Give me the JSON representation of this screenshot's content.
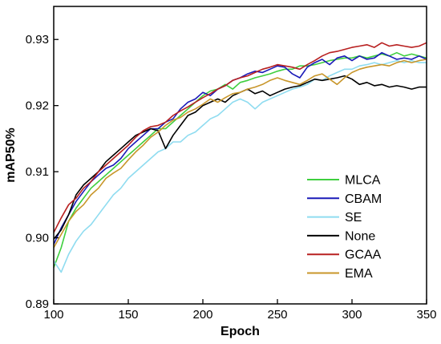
{
  "chart_data": {
    "type": "line",
    "xlabel": "Epoch",
    "ylabel": "mAP50%",
    "xlim": [
      100,
      350
    ],
    "ylim": [
      0.89,
      0.935
    ],
    "xticks": [
      100,
      150,
      200,
      250,
      300,
      350
    ],
    "yticks": [
      0.89,
      0.9,
      0.91,
      0.92,
      0.93
    ],
    "ytick_labels": [
      "0.89",
      "0.90",
      "0.91",
      "0.92",
      "0.93"
    ],
    "legend_position": "bottom-right",
    "grid": false,
    "series": [
      {
        "name": "MLCA",
        "color": "#3fcf3f",
        "points": [
          [
            100,
            0.8955
          ],
          [
            105,
            0.8985
          ],
          [
            110,
            0.9025
          ],
          [
            115,
            0.9045
          ],
          [
            120,
            0.906
          ],
          [
            125,
            0.9075
          ],
          [
            130,
            0.9085
          ],
          [
            135,
            0.9095
          ],
          [
            140,
            0.9105
          ],
          [
            145,
            0.9115
          ],
          [
            150,
            0.9125
          ],
          [
            155,
            0.9135
          ],
          [
            160,
            0.9145
          ],
          [
            165,
            0.9155
          ],
          [
            170,
            0.9165
          ],
          [
            175,
            0.9165
          ],
          [
            180,
            0.9175
          ],
          [
            185,
            0.9185
          ],
          [
            190,
            0.9195
          ],
          [
            195,
            0.9205
          ],
          [
            200,
            0.9215
          ],
          [
            205,
            0.9222
          ],
          [
            210,
            0.9225
          ],
          [
            215,
            0.9232
          ],
          [
            220,
            0.9225
          ],
          [
            225,
            0.9235
          ],
          [
            230,
            0.9238
          ],
          [
            235,
            0.9242
          ],
          [
            240,
            0.9245
          ],
          [
            245,
            0.9248
          ],
          [
            250,
            0.9252
          ],
          [
            255,
            0.9255
          ],
          [
            260,
            0.9255
          ],
          [
            265,
            0.926
          ],
          [
            270,
            0.926
          ],
          [
            275,
            0.9262
          ],
          [
            280,
            0.9265
          ],
          [
            285,
            0.9268
          ],
          [
            290,
            0.927
          ],
          [
            295,
            0.9272
          ],
          [
            300,
            0.9272
          ],
          [
            305,
            0.9275
          ],
          [
            310,
            0.9272
          ],
          [
            315,
            0.9275
          ],
          [
            320,
            0.9278
          ],
          [
            325,
            0.9275
          ],
          [
            330,
            0.928
          ],
          [
            335,
            0.9275
          ],
          [
            340,
            0.9278
          ],
          [
            345,
            0.9275
          ],
          [
            350,
            0.9272
          ]
        ]
      },
      {
        "name": "CBAM",
        "color": "#1a1ab8",
        "points": [
          [
            100,
            0.899
          ],
          [
            105,
            0.9015
          ],
          [
            110,
            0.9035
          ],
          [
            115,
            0.9055
          ],
          [
            120,
            0.907
          ],
          [
            125,
            0.9085
          ],
          [
            130,
            0.9095
          ],
          [
            135,
            0.9105
          ],
          [
            140,
            0.911
          ],
          [
            145,
            0.912
          ],
          [
            150,
            0.9135
          ],
          [
            155,
            0.9145
          ],
          [
            160,
            0.9155
          ],
          [
            165,
            0.9165
          ],
          [
            170,
            0.9165
          ],
          [
            175,
            0.9175
          ],
          [
            180,
            0.918
          ],
          [
            185,
            0.9195
          ],
          [
            190,
            0.9205
          ],
          [
            195,
            0.921
          ],
          [
            200,
            0.922
          ],
          [
            205,
            0.9215
          ],
          [
            210,
            0.9225
          ],
          [
            215,
            0.923
          ],
          [
            220,
            0.9238
          ],
          [
            225,
            0.9242
          ],
          [
            230,
            0.9248
          ],
          [
            235,
            0.9252
          ],
          [
            240,
            0.925
          ],
          [
            245,
            0.9255
          ],
          [
            250,
            0.926
          ],
          [
            255,
            0.9258
          ],
          [
            260,
            0.9248
          ],
          [
            265,
            0.9242
          ],
          [
            270,
            0.9258
          ],
          [
            275,
            0.9265
          ],
          [
            280,
            0.927
          ],
          [
            285,
            0.9262
          ],
          [
            290,
            0.9272
          ],
          [
            295,
            0.9275
          ],
          [
            300,
            0.9268
          ],
          [
            305,
            0.9275
          ],
          [
            310,
            0.927
          ],
          [
            315,
            0.9272
          ],
          [
            320,
            0.928
          ],
          [
            325,
            0.9275
          ],
          [
            330,
            0.927
          ],
          [
            335,
            0.9272
          ],
          [
            340,
            0.927
          ],
          [
            345,
            0.9275
          ],
          [
            350,
            0.927
          ]
        ]
      },
      {
        "name": "SE",
        "color": "#8fdcf0",
        "points": [
          [
            100,
            0.8965
          ],
          [
            105,
            0.8948
          ],
          [
            110,
            0.8975
          ],
          [
            115,
            0.8995
          ],
          [
            120,
            0.901
          ],
          [
            125,
            0.902
          ],
          [
            130,
            0.9035
          ],
          [
            135,
            0.905
          ],
          [
            140,
            0.9065
          ],
          [
            145,
            0.9075
          ],
          [
            150,
            0.909
          ],
          [
            155,
            0.91
          ],
          [
            160,
            0.911
          ],
          [
            165,
            0.912
          ],
          [
            170,
            0.913
          ],
          [
            175,
            0.9135
          ],
          [
            180,
            0.9145
          ],
          [
            185,
            0.9145
          ],
          [
            190,
            0.9155
          ],
          [
            195,
            0.916
          ],
          [
            200,
            0.917
          ],
          [
            205,
            0.918
          ],
          [
            210,
            0.9185
          ],
          [
            215,
            0.9195
          ],
          [
            220,
            0.9205
          ],
          [
            225,
            0.921
          ],
          [
            230,
            0.9205
          ],
          [
            235,
            0.9195
          ],
          [
            240,
            0.9205
          ],
          [
            245,
            0.921
          ],
          [
            250,
            0.9215
          ],
          [
            255,
            0.922
          ],
          [
            260,
            0.9225
          ],
          [
            265,
            0.9228
          ],
          [
            270,
            0.9232
          ],
          [
            275,
            0.924
          ],
          [
            280,
            0.9238
          ],
          [
            285,
            0.9245
          ],
          [
            290,
            0.925
          ],
          [
            295,
            0.9255
          ],
          [
            300,
            0.9255
          ],
          [
            305,
            0.926
          ],
          [
            310,
            0.9262
          ],
          [
            315,
            0.9265
          ],
          [
            320,
            0.9262
          ],
          [
            325,
            0.9265
          ],
          [
            330,
            0.9268
          ],
          [
            335,
            0.9265
          ],
          [
            340,
            0.9268
          ],
          [
            345,
            0.9265
          ],
          [
            350,
            0.9265
          ]
        ]
      },
      {
        "name": "None",
        "color": "#000000",
        "points": [
          [
            100,
            0.8998
          ],
          [
            105,
            0.9012
          ],
          [
            110,
            0.9035
          ],
          [
            115,
            0.9065
          ],
          [
            120,
            0.908
          ],
          [
            125,
            0.909
          ],
          [
            130,
            0.91
          ],
          [
            135,
            0.9115
          ],
          [
            140,
            0.9125
          ],
          [
            145,
            0.9135
          ],
          [
            150,
            0.9145
          ],
          [
            155,
            0.9155
          ],
          [
            160,
            0.916
          ],
          [
            165,
            0.9165
          ],
          [
            170,
            0.9162
          ],
          [
            175,
            0.9135
          ],
          [
            180,
            0.9155
          ],
          [
            185,
            0.917
          ],
          [
            190,
            0.9185
          ],
          [
            195,
            0.919
          ],
          [
            200,
            0.92
          ],
          [
            205,
            0.9205
          ],
          [
            210,
            0.921
          ],
          [
            215,
            0.9205
          ],
          [
            220,
            0.9215
          ],
          [
            225,
            0.922
          ],
          [
            230,
            0.9225
          ],
          [
            235,
            0.9218
          ],
          [
            240,
            0.9222
          ],
          [
            245,
            0.9215
          ],
          [
            250,
            0.922
          ],
          [
            255,
            0.9225
          ],
          [
            260,
            0.9228
          ],
          [
            265,
            0.923
          ],
          [
            270,
            0.9235
          ],
          [
            275,
            0.924
          ],
          [
            280,
            0.9238
          ],
          [
            285,
            0.924
          ],
          [
            290,
            0.9242
          ],
          [
            295,
            0.9245
          ],
          [
            300,
            0.924
          ],
          [
            305,
            0.9232
          ],
          [
            310,
            0.9235
          ],
          [
            315,
            0.923
          ],
          [
            320,
            0.9232
          ],
          [
            325,
            0.9228
          ],
          [
            330,
            0.923
          ],
          [
            335,
            0.9228
          ],
          [
            340,
            0.9225
          ],
          [
            345,
            0.9228
          ],
          [
            350,
            0.9228
          ]
        ]
      },
      {
        "name": "GCAA",
        "color": "#b82020",
        "points": [
          [
            100,
            0.9008
          ],
          [
            105,
            0.903
          ],
          [
            110,
            0.905
          ],
          [
            115,
            0.906
          ],
          [
            120,
            0.9075
          ],
          [
            125,
            0.9085
          ],
          [
            130,
            0.91
          ],
          [
            135,
            0.911
          ],
          [
            140,
            0.912
          ],
          [
            145,
            0.913
          ],
          [
            150,
            0.914
          ],
          [
            155,
            0.9152
          ],
          [
            160,
            0.9162
          ],
          [
            165,
            0.9168
          ],
          [
            170,
            0.917
          ],
          [
            175,
            0.9175
          ],
          [
            180,
            0.9185
          ],
          [
            185,
            0.9192
          ],
          [
            190,
            0.9198
          ],
          [
            195,
            0.9205
          ],
          [
            200,
            0.9212
          ],
          [
            205,
            0.9218
          ],
          [
            210,
            0.9225
          ],
          [
            215,
            0.923
          ],
          [
            220,
            0.9238
          ],
          [
            225,
            0.9242
          ],
          [
            230,
            0.9245
          ],
          [
            235,
            0.925
          ],
          [
            240,
            0.9255
          ],
          [
            245,
            0.9258
          ],
          [
            250,
            0.9262
          ],
          [
            255,
            0.926
          ],
          [
            260,
            0.9258
          ],
          [
            265,
            0.9255
          ],
          [
            270,
            0.9262
          ],
          [
            275,
            0.9268
          ],
          [
            280,
            0.9275
          ],
          [
            285,
            0.928
          ],
          [
            290,
            0.9282
          ],
          [
            295,
            0.9285
          ],
          [
            300,
            0.9288
          ],
          [
            305,
            0.929
          ],
          [
            310,
            0.9292
          ],
          [
            315,
            0.9288
          ],
          [
            320,
            0.9295
          ],
          [
            325,
            0.929
          ],
          [
            330,
            0.9292
          ],
          [
            335,
            0.929
          ],
          [
            340,
            0.9288
          ],
          [
            345,
            0.929
          ],
          [
            350,
            0.9295
          ]
        ]
      },
      {
        "name": "EMA",
        "color": "#c8962a",
        "points": [
          [
            100,
            0.8985
          ],
          [
            105,
            0.9005
          ],
          [
            110,
            0.9025
          ],
          [
            115,
            0.904
          ],
          [
            120,
            0.905
          ],
          [
            125,
            0.9065
          ],
          [
            130,
            0.9075
          ],
          [
            135,
            0.909
          ],
          [
            140,
            0.9098
          ],
          [
            145,
            0.9105
          ],
          [
            150,
            0.9118
          ],
          [
            155,
            0.913
          ],
          [
            160,
            0.914
          ],
          [
            165,
            0.9152
          ],
          [
            170,
            0.916
          ],
          [
            175,
            0.917
          ],
          [
            180,
            0.9178
          ],
          [
            185,
            0.9182
          ],
          [
            190,
            0.919
          ],
          [
            195,
            0.9195
          ],
          [
            200,
            0.9202
          ],
          [
            205,
            0.921
          ],
          [
            210,
            0.9205
          ],
          [
            215,
            0.9212
          ],
          [
            220,
            0.9218
          ],
          [
            225,
            0.922
          ],
          [
            230,
            0.9225
          ],
          [
            235,
            0.9228
          ],
          [
            240,
            0.9232
          ],
          [
            245,
            0.9238
          ],
          [
            250,
            0.9242
          ],
          [
            255,
            0.9238
          ],
          [
            260,
            0.9235
          ],
          [
            265,
            0.9232
          ],
          [
            270,
            0.9238
          ],
          [
            275,
            0.9245
          ],
          [
            280,
            0.9248
          ],
          [
            285,
            0.924
          ],
          [
            290,
            0.9232
          ],
          [
            295,
            0.9242
          ],
          [
            300,
            0.925
          ],
          [
            305,
            0.9255
          ],
          [
            310,
            0.9258
          ],
          [
            315,
            0.926
          ],
          [
            320,
            0.9262
          ],
          [
            325,
            0.926
          ],
          [
            330,
            0.9265
          ],
          [
            335,
            0.9268
          ],
          [
            340,
            0.9265
          ],
          [
            345,
            0.9268
          ],
          [
            350,
            0.927
          ]
        ]
      }
    ]
  }
}
